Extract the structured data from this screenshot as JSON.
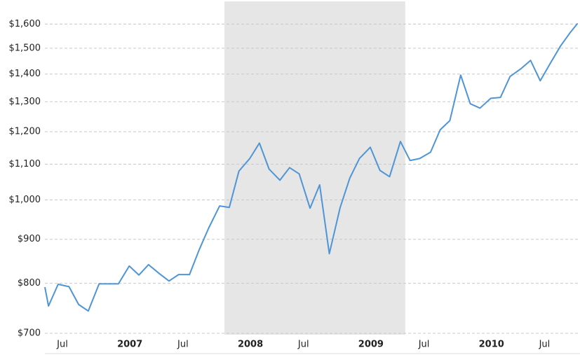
{
  "chart_data": {
    "type": "line",
    "log_scale_y": true,
    "grid": true,
    "shaded_range": [
      2007.89,
      2009.39
    ],
    "shade_color": "#e6e6e6",
    "x": [
      2006.4,
      2006.43,
      2006.51,
      2006.6,
      2006.68,
      2006.76,
      2006.85,
      2006.93,
      2007.01,
      2007.1,
      2007.18,
      2007.26,
      2007.35,
      2007.43,
      2007.51,
      2007.6,
      2007.68,
      2007.76,
      2007.85,
      2007.93,
      2008.01,
      2008.1,
      2008.18,
      2008.26,
      2008.35,
      2008.43,
      2008.51,
      2008.6,
      2008.68,
      2008.76,
      2008.85,
      2008.93,
      2009.01,
      2009.1,
      2009.18,
      2009.26,
      2009.35,
      2009.43,
      2009.51,
      2009.6,
      2009.68,
      2009.76,
      2009.85,
      2009.93,
      2010.01,
      2010.1,
      2010.18,
      2010.26,
      2010.35,
      2010.43,
      2010.51,
      2010.6,
      2010.68,
      2010.76,
      2010.82
    ],
    "series": [
      {
        "color": "#4f95d6",
        "values": [
          792,
          753,
          798,
          793,
          756,
          743,
          799,
          799,
          799,
          838,
          818,
          841,
          821,
          805,
          819,
          819,
          875,
          928,
          984,
          980,
          1080,
          1117,
          1164,
          1086,
          1054,
          1090,
          1072,
          978,
          1041,
          866,
          980,
          1060,
          1117,
          1151,
          1082,
          1064,
          1169,
          1111,
          1117,
          1136,
          1206,
          1236,
          1396,
          1293,
          1278,
          1312,
          1315,
          1391,
          1420,
          1452,
          1375,
          1446,
          1510,
          1565,
          1603
        ]
      }
    ],
    "xlim": [
      2006.4,
      2010.84
    ],
    "xticks": [
      {
        "value": 2006.5,
        "label": "Jul"
      },
      {
        "value": 2007,
        "label": "2007"
      },
      {
        "value": 2007.5,
        "label": "Jul"
      },
      {
        "value": 2008,
        "label": "2008"
      },
      {
        "value": 2008.5,
        "label": "Jul"
      },
      {
        "value": 2009,
        "label": "2009"
      },
      {
        "value": 2009.5,
        "label": "Jul"
      },
      {
        "value": 2010,
        "label": "2010"
      },
      {
        "value": 2010.5,
        "label": "Jul"
      }
    ],
    "ylim": [
      700,
      1700
    ],
    "yticks": [
      {
        "value": 700,
        "label": "$700"
      },
      {
        "value": 800,
        "label": "$800"
      },
      {
        "value": 900,
        "label": "$900"
      },
      {
        "value": 1000,
        "label": "$1,000"
      },
      {
        "value": 1100,
        "label": "$1,100"
      },
      {
        "value": 1200,
        "label": "$1,200"
      },
      {
        "value": 1300,
        "label": "$1,300"
      },
      {
        "value": 1400,
        "label": "$1,400"
      },
      {
        "value": 1500,
        "label": "$1,500"
      },
      {
        "value": 1600,
        "label": "$1,600"
      }
    ]
  }
}
